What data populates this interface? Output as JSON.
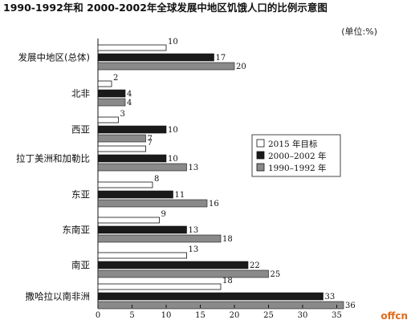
{
  "watermark": "offcn",
  "chart_data": {
    "type": "bar",
    "orientation": "horizontal",
    "title": "1990-1992年和 2000-2002年全球发展中地区饥饿人口的比例示意图",
    "unit_label": "(单位:%)",
    "categories": [
      "发展中地区(总体)",
      "北非",
      "西亚",
      "拉丁美洲和加勒比",
      "东亚",
      "东南亚",
      "南亚",
      "撒哈拉以南非洲"
    ],
    "series": [
      {
        "name": "2015 年目标",
        "color": "#ffffff",
        "values": [
          10,
          2,
          3,
          7,
          8,
          9,
          13,
          18
        ]
      },
      {
        "name": "2000–2002 年",
        "color": "#1a1a1a",
        "values": [
          17,
          4,
          10,
          10,
          11,
          13,
          22,
          33
        ]
      },
      {
        "name": "1990–1992 年",
        "color": "#8a8a8a",
        "values": [
          20,
          4,
          7,
          13,
          16,
          18,
          25,
          36
        ]
      }
    ],
    "xlim": [
      0,
      35
    ],
    "xticks": [
      0,
      5,
      10,
      15,
      20,
      25,
      30,
      35
    ],
    "legend_position": "right",
    "grid": false
  }
}
